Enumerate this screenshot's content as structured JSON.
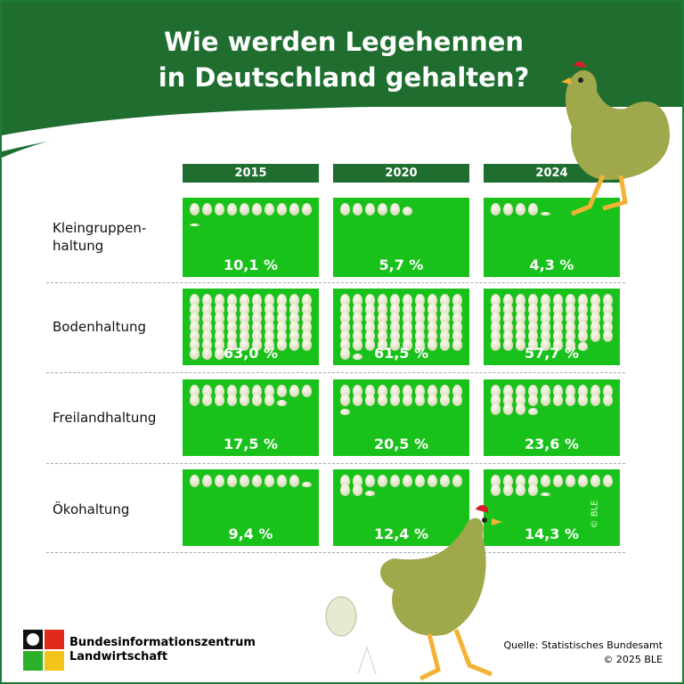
{
  "header": {
    "title_line1": "Wie werden Legehennen",
    "title_line2": "in Deutschland gehalten?"
  },
  "chart_data": {
    "type": "pictogram",
    "unit": "1 egg = 1 %",
    "categories": [
      "2015",
      "2020",
      "2024"
    ],
    "series": [
      {
        "name": "Kleingruppen-haltung",
        "values": [
          10.1,
          5.7,
          4.3
        ],
        "labels": [
          "10,1 %",
          "5,7 %",
          "4,3 %"
        ]
      },
      {
        "name": "Bodenhaltung",
        "values": [
          63.0,
          61.5,
          57.7
        ],
        "labels": [
          "63,0 %",
          "61,5 %",
          "57,7 %"
        ]
      },
      {
        "name": "Freilandhaltung",
        "values": [
          17.5,
          20.5,
          23.6
        ],
        "labels": [
          "17,5 %",
          "20,5 %",
          "23,6 %"
        ]
      },
      {
        "name": "Ökohaltung",
        "values": [
          9.4,
          12.4,
          14.3
        ],
        "labels": [
          "9,4 %",
          "12,4 %",
          "14,3 %"
        ]
      }
    ]
  },
  "row_labels": [
    "Kleingruppen-\nhaltung",
    "Bodenhaltung",
    "Freilandhaltung",
    "Ökohaltung"
  ],
  "watermark": "© BLE",
  "footer": {
    "org_line1": "Bundesinformationszentrum",
    "org_line2": "Landwirtschaft",
    "source": "Quelle: Statistisches Bundesamt",
    "copyright": "© 2025 BLE"
  },
  "colors": {
    "box": "#19c21a",
    "header": "#1f6e30",
    "egg": "#e8e8d0"
  }
}
